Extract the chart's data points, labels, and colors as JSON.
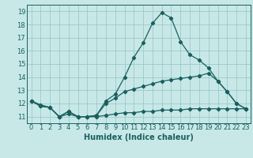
{
  "title": "",
  "xlabel": "Humidex (Indice chaleur)",
  "ylabel": "",
  "background_color": "#c8e8e8",
  "grid_color": "#9ec8c8",
  "line_color": "#1a5f5f",
  "x_values": [
    0,
    1,
    2,
    3,
    4,
    5,
    6,
    7,
    8,
    9,
    10,
    11,
    12,
    13,
    14,
    15,
    16,
    17,
    18,
    19,
    20,
    21,
    22,
    23
  ],
  "series": {
    "line1": [
      12.2,
      11.8,
      11.7,
      11.0,
      11.4,
      11.0,
      11.0,
      11.1,
      12.2,
      12.7,
      14.0,
      15.5,
      16.6,
      18.1,
      18.9,
      18.5,
      16.7,
      15.7,
      15.3,
      14.7,
      13.7,
      12.9,
      12.0,
      11.6
    ],
    "line2": [
      12.2,
      11.9,
      11.7,
      11.0,
      11.4,
      11.0,
      11.0,
      11.1,
      12.0,
      12.4,
      12.9,
      13.1,
      13.3,
      13.5,
      13.7,
      13.8,
      13.9,
      14.0,
      14.1,
      14.3,
      13.7,
      12.9,
      12.0,
      11.6
    ],
    "line3": [
      12.2,
      11.8,
      11.7,
      11.0,
      11.2,
      11.0,
      11.0,
      11.0,
      11.1,
      11.2,
      11.3,
      11.3,
      11.4,
      11.4,
      11.5,
      11.5,
      11.5,
      11.6,
      11.6,
      11.6,
      11.6,
      11.6,
      11.6,
      11.6
    ]
  },
  "ylim": [
    10.5,
    19.5
  ],
  "xlim": [
    -0.5,
    23.5
  ],
  "yticks": [
    11,
    12,
    13,
    14,
    15,
    16,
    17,
    18,
    19
  ],
  "xticks": [
    0,
    1,
    2,
    3,
    4,
    5,
    6,
    7,
    8,
    9,
    10,
    11,
    12,
    13,
    14,
    15,
    16,
    17,
    18,
    19,
    20,
    21,
    22,
    23
  ],
  "tick_fontsize": 6.0,
  "xlabel_fontsize": 7.0,
  "marker_size": 2.2,
  "line_width": 0.9
}
